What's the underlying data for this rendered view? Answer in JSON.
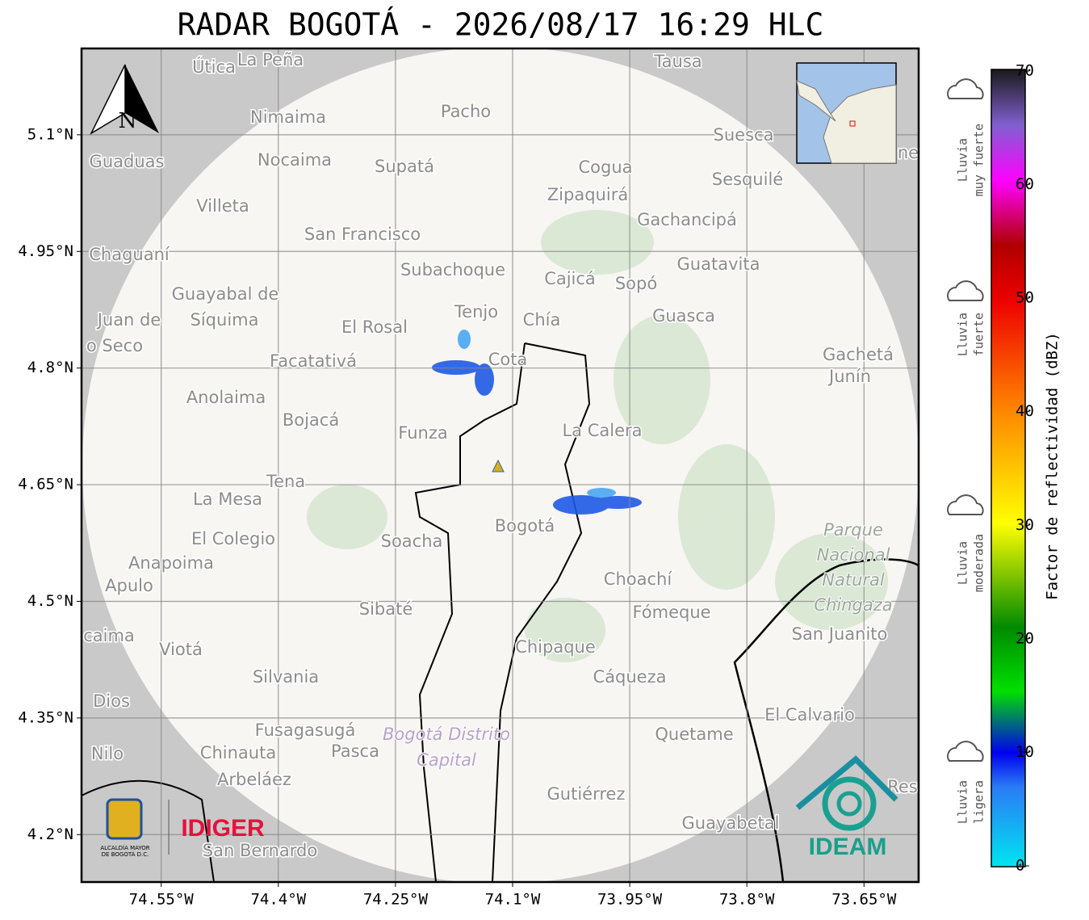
{
  "title": "RADAR BOGOTÁ - 2026/08/17 16:29 HLC",
  "map": {
    "xlim": [
      -74.652,
      -73.58
    ],
    "ylim": [
      4.139,
      5.211
    ],
    "xticks": [
      {
        "value": -74.55,
        "label": "74.55°W"
      },
      {
        "value": -74.4,
        "label": "74.4°W"
      },
      {
        "value": -74.25,
        "label": "74.25°W"
      },
      {
        "value": -74.1,
        "label": "74.1°W"
      },
      {
        "value": -73.95,
        "label": "73.95°W"
      },
      {
        "value": -73.8,
        "label": "73.8°W"
      },
      {
        "value": -73.65,
        "label": "73.65°W"
      }
    ],
    "yticks": [
      {
        "value": 4.2,
        "label": "4.2°N"
      },
      {
        "value": 4.35,
        "label": "4.35°N"
      },
      {
        "value": 4.5,
        "label": "4.5°N"
      },
      {
        "value": 4.65,
        "label": "4.65°N"
      },
      {
        "value": 4.8,
        "label": "4.8°N"
      },
      {
        "value": 4.95,
        "label": "4.95°N"
      },
      {
        "value": 5.1,
        "label": "5.1°N"
      }
    ],
    "north": "N",
    "places": [
      "Útica",
      "La Peña",
      "Tausa",
      "Pacho",
      "Nimaima",
      "Guaduas",
      "Nocaima",
      "Supatá",
      "Cogua",
      "Suesca",
      "Sesquilé",
      "Zipaquirá",
      "Villeta",
      "Gachancipá",
      "San Francisco",
      "Chaguaní",
      "Guatavita",
      "Subachoque",
      "Cajicá",
      "Sopó",
      "Guayabal de",
      "Síquima",
      "Tenjo",
      "Juan de",
      "Chía",
      "Guasca",
      "El Rosal",
      "o Seco",
      "Cota",
      "Facatativá",
      "Gachetá",
      "Junín",
      "Anolaima",
      "Bojacá",
      "Funza",
      "La Calera",
      "Tena",
      "La Mesa",
      "Bogotá",
      "Soacha",
      "El Colegio",
      "Anapoima",
      "Apulo",
      "Choachí",
      "Sibaté",
      "Fómeque",
      "San Juanito",
      "caima",
      "Viotá",
      "Chipaque",
      "Silvania",
      "Cáqueza",
      "Dios",
      "El Calvario",
      "Fusagasugá",
      "Quetame",
      "Nilo",
      "Chinauta",
      "Pasca",
      "Arbeláez",
      "Gutiérrez",
      "Res",
      "Guayabetal",
      "San Bernardo",
      "ne"
    ],
    "areas": [
      [
        "Parque",
        "Nacional",
        "Natural",
        "Chingaza"
      ],
      [
        "Bogotá Distrito",
        "Capital"
      ]
    ]
  },
  "colorbar": {
    "label": "Factor de reflectividad (dBZ)",
    "lim": [
      0,
      70
    ],
    "ticks": [
      0,
      10,
      20,
      30,
      40,
      50,
      60,
      70
    ]
  },
  "categories": [
    [
      "Lluvia",
      "muy fuerte"
    ],
    [
      "Lluvia",
      "fuerte"
    ],
    [
      "Lluvia",
      "moderada"
    ],
    [
      "Lluvia",
      "ligera"
    ]
  ],
  "logos": {
    "alcaldia": [
      "ALCALDÍA MAYOR",
      "DE BOGOTÁ D.C."
    ],
    "idiger": "IDIGER",
    "ideam": "IDEAM"
  }
}
